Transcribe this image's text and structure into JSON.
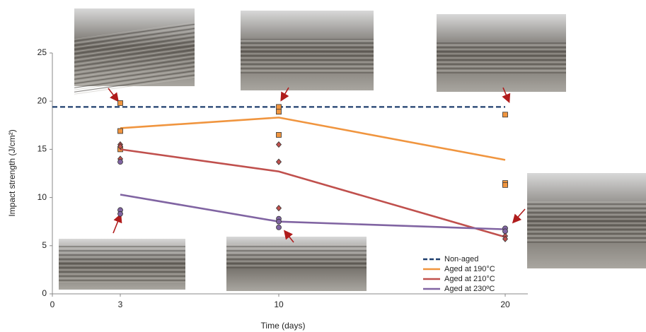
{
  "chart_data": {
    "type": "line",
    "y_label": "Impact strength (J/cm²)",
    "x_label": "Time (days)",
    "xlim": [
      0,
      21
    ],
    "xticks": [
      0,
      3,
      10,
      20
    ],
    "ylim": [
      0,
      25
    ],
    "yticks": [
      0,
      5,
      10,
      15,
      20,
      25
    ],
    "legend": "lower right",
    "series": [
      {
        "name": "Non-aged",
        "color": "#1f3f6e",
        "dashed": true,
        "x": [
          0,
          20
        ],
        "values": [
          19.4,
          19.4
        ]
      },
      {
        "name": "Aged at 190°C",
        "color": "#f0953f",
        "marker": "square",
        "x": [
          3,
          10,
          20
        ],
        "values": [
          17.2,
          18.3,
          13.9
        ],
        "points": {
          "x": [
            3,
            3,
            3,
            10,
            10,
            10,
            20,
            20,
            20
          ],
          "values": [
            19.8,
            16.9,
            15.0,
            19.4,
            18.9,
            16.5,
            18.6,
            11.5,
            11.3
          ]
        }
      },
      {
        "name": "Aged at 210°C",
        "color": "#c0504d",
        "marker": "diamond",
        "x": [
          3,
          10,
          20
        ],
        "values": [
          15.0,
          12.7,
          5.9
        ],
        "points": {
          "x": [
            3,
            3,
            3,
            10,
            10,
            10,
            20,
            20
          ],
          "values": [
            15.5,
            15.3,
            14.0,
            15.5,
            13.7,
            8.9,
            6.0,
            5.7
          ]
        }
      },
      {
        "name": "Aged at 230ºC",
        "color": "#8064a2",
        "marker": "circle",
        "x": [
          3,
          10,
          20
        ],
        "values": [
          10.3,
          7.5,
          6.7
        ],
        "points": {
          "x": [
            3,
            3,
            3,
            10,
            10,
            10,
            20,
            20
          ],
          "values": [
            13.7,
            8.7,
            8.3,
            7.8,
            7.5,
            6.9,
            6.8,
            6.5
          ]
        }
      }
    ]
  }
}
